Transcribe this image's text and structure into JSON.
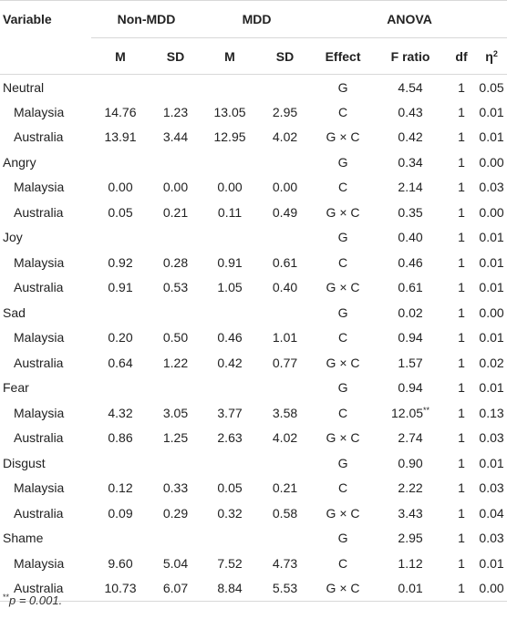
{
  "header": {
    "variable": "Variable",
    "groups": [
      "Non-MDD",
      "MDD",
      "ANOVA"
    ],
    "sub": [
      "M",
      "SD",
      "M",
      "SD",
      "Effect",
      "F ratio",
      "df",
      "η",
      "2"
    ]
  },
  "rows": [
    {
      "label": "Neutral",
      "kind": "var",
      "m1": "",
      "sd1": "",
      "m2": "",
      "sd2": "",
      "effect": "G",
      "f": "4.54",
      "fsup": "",
      "df": "1",
      "eta": "0.05"
    },
    {
      "label": "Malaysia",
      "kind": "sub",
      "m1": "14.76",
      "sd1": "1.23",
      "m2": "13.05",
      "sd2": "2.95",
      "effect": "C",
      "f": "0.43",
      "fsup": "",
      "df": "1",
      "eta": "0.01"
    },
    {
      "label": "Australia",
      "kind": "sub",
      "m1": "13.91",
      "sd1": "3.44",
      "m2": "12.95",
      "sd2": "4.02",
      "effect": "G × C",
      "f": "0.42",
      "fsup": "",
      "df": "1",
      "eta": "0.01"
    },
    {
      "label": "Angry",
      "kind": "var",
      "m1": "",
      "sd1": "",
      "m2": "",
      "sd2": "",
      "effect": "G",
      "f": "0.34",
      "fsup": "",
      "df": "1",
      "eta": "0.00"
    },
    {
      "label": "Malaysia",
      "kind": "sub",
      "m1": "0.00",
      "sd1": "0.00",
      "m2": "0.00",
      "sd2": "0.00",
      "effect": "C",
      "f": "2.14",
      "fsup": "",
      "df": "1",
      "eta": "0.03"
    },
    {
      "label": "Australia",
      "kind": "sub",
      "m1": "0.05",
      "sd1": "0.21",
      "m2": "0.11",
      "sd2": "0.49",
      "effect": "G × C",
      "f": "0.35",
      "fsup": "",
      "df": "1",
      "eta": "0.00"
    },
    {
      "label": "Joy",
      "kind": "var",
      "m1": "",
      "sd1": "",
      "m2": "",
      "sd2": "",
      "effect": "G",
      "f": "0.40",
      "fsup": "",
      "df": "1",
      "eta": "0.01"
    },
    {
      "label": "Malaysia",
      "kind": "sub",
      "m1": "0.92",
      "sd1": "0.28",
      "m2": "0.91",
      "sd2": "0.61",
      "effect": "C",
      "f": "0.46",
      "fsup": "",
      "df": "1",
      "eta": "0.01"
    },
    {
      "label": "Australia",
      "kind": "sub",
      "m1": "0.91",
      "sd1": "0.53",
      "m2": "1.05",
      "sd2": "0.40",
      "effect": "G × C",
      "f": "0.61",
      "fsup": "",
      "df": "1",
      "eta": "0.01"
    },
    {
      "label": "Sad",
      "kind": "var",
      "m1": "",
      "sd1": "",
      "m2": "",
      "sd2": "",
      "effect": "G",
      "f": "0.02",
      "fsup": "",
      "df": "1",
      "eta": "0.00"
    },
    {
      "label": "Malaysia",
      "kind": "sub",
      "m1": "0.20",
      "sd1": "0.50",
      "m2": "0.46",
      "sd2": "1.01",
      "effect": "C",
      "f": "0.94",
      "fsup": "",
      "df": "1",
      "eta": "0.01"
    },
    {
      "label": "Australia",
      "kind": "sub",
      "m1": "0.64",
      "sd1": "1.22",
      "m2": "0.42",
      "sd2": "0.77",
      "effect": "G × C",
      "f": "1.57",
      "fsup": "",
      "df": "1",
      "eta": "0.02"
    },
    {
      "label": "Fear",
      "kind": "var",
      "m1": "",
      "sd1": "",
      "m2": "",
      "sd2": "",
      "effect": "G",
      "f": "0.94",
      "fsup": "",
      "df": "1",
      "eta": "0.01"
    },
    {
      "label": "Malaysia",
      "kind": "sub",
      "m1": "4.32",
      "sd1": "3.05",
      "m2": "3.77",
      "sd2": "3.58",
      "effect": "C",
      "f": "12.05",
      "fsup": "**",
      "df": "1",
      "eta": "0.13"
    },
    {
      "label": "Australia",
      "kind": "sub",
      "m1": "0.86",
      "sd1": "1.25",
      "m2": "2.63",
      "sd2": "4.02",
      "effect": "G × C",
      "f": "2.74",
      "fsup": "",
      "df": "1",
      "eta": "0.03"
    },
    {
      "label": "Disgust",
      "kind": "var",
      "m1": "",
      "sd1": "",
      "m2": "",
      "sd2": "",
      "effect": "G",
      "f": "0.90",
      "fsup": "",
      "df": "1",
      "eta": "0.01"
    },
    {
      "label": "Malaysia",
      "kind": "sub",
      "m1": "0.12",
      "sd1": "0.33",
      "m2": "0.05",
      "sd2": "0.21",
      "effect": "C",
      "f": "2.22",
      "fsup": "",
      "df": "1",
      "eta": "0.03"
    },
    {
      "label": "Australia",
      "kind": "sub",
      "m1": "0.09",
      "sd1": "0.29",
      "m2": "0.32",
      "sd2": "0.58",
      "effect": "G × C",
      "f": "3.43",
      "fsup": "",
      "df": "1",
      "eta": "0.04"
    },
    {
      "label": "Shame",
      "kind": "var",
      "m1": "",
      "sd1": "",
      "m2": "",
      "sd2": "",
      "effect": "G",
      "f": "2.95",
      "fsup": "",
      "df": "1",
      "eta": "0.03"
    },
    {
      "label": "Malaysia",
      "kind": "sub",
      "m1": "9.60",
      "sd1": "5.04",
      "m2": "7.52",
      "sd2": "4.73",
      "effect": "C",
      "f": "1.12",
      "fsup": "",
      "df": "1",
      "eta": "0.01"
    },
    {
      "label": "Australia",
      "kind": "sub",
      "m1": "10.73",
      "sd1": "6.07",
      "m2": "8.84",
      "sd2": "5.53",
      "effect": "G × C",
      "f": "0.01",
      "fsup": "",
      "df": "1",
      "eta": "0.00"
    }
  ],
  "footnote": {
    "sup": "**",
    "text": "p = 0.001."
  }
}
